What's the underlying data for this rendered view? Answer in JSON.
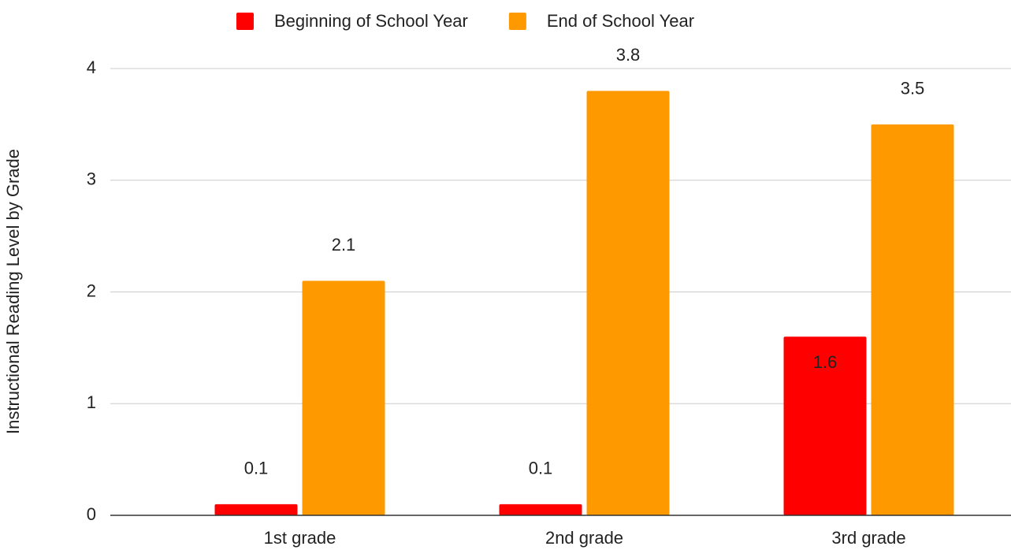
{
  "chart_data": {
    "type": "bar",
    "y_label": "Instructional Reading Level by Grade",
    "categories": [
      "1st grade",
      "2nd grade",
      "3rd grade"
    ],
    "series": [
      {
        "name": "Beginning of School Year",
        "color": "#ff0000",
        "values": [
          0.1,
          0.1,
          1.6
        ]
      },
      {
        "name": "End of School Year",
        "color": "#ff9900",
        "values": [
          2.1,
          3.8,
          3.5
        ]
      }
    ],
    "ylim": [
      0,
      4
    ],
    "yticks": [
      0,
      1,
      2,
      3,
      4
    ],
    "grid": true,
    "legend": "top"
  }
}
